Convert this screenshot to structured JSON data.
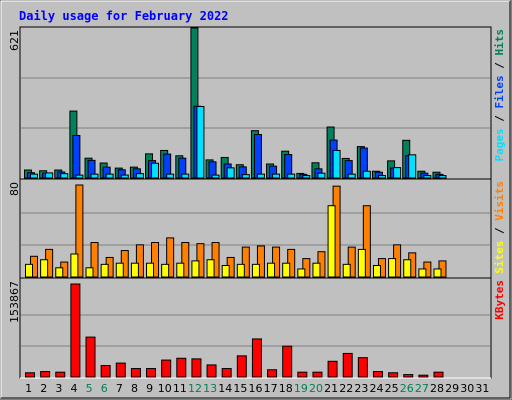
{
  "title": "Daily usage for February 2022",
  "colors": {
    "background": "#c0c0c0",
    "plot": "#c0c0c0",
    "title": "#0000ff",
    "hits": "#00805c",
    "files": "#0040ff",
    "pages": "#00e0ff",
    "visits": "#ff8000",
    "sites": "#ffff00",
    "kbytes": "#ff0000",
    "weekend": "#00805c",
    "weekday": "#000000",
    "grid": "#808080"
  },
  "chart_data": [
    {
      "type": "bar",
      "name": "hits-files-pages",
      "legend": [
        {
          "label": "Hits",
          "color": "#00805c"
        },
        {
          "label": "Files",
          "color": "#0040ff"
        },
        {
          "label": "Pages",
          "color": "#00e0ff"
        }
      ],
      "ymax_label": "621",
      "ylim": [
        0,
        621
      ],
      "categories": [
        "1",
        "2",
        "3",
        "4",
        "5",
        "6",
        "7",
        "8",
        "9",
        "10",
        "11",
        "12",
        "13",
        "14",
        "15",
        "16",
        "17",
        "18",
        "19",
        "20",
        "21",
        "22",
        "23",
        "24",
        "25",
        "26",
        "27",
        "28",
        "29",
        "30",
        "31"
      ],
      "series": [
        {
          "name": "Hits",
          "values": [
            33,
            30,
            33,
            277,
            82,
            62,
            41,
            45,
            100,
            114,
            92,
            621,
            75,
            85,
            55,
            196,
            58,
            111,
            19,
            63,
            211,
            81,
            130,
            28,
            71,
            156,
            28,
            24,
            0,
            0,
            0
          ]
        },
        {
          "name": "Files",
          "values": [
            22,
            20,
            25,
            176,
            73,
            45,
            34,
            38,
            72,
            99,
            82,
            297,
            67,
            58,
            46,
            180,
            49,
            97,
            15,
            38,
            157,
            72,
            124,
            24,
            41,
            92,
            20,
            15,
            0,
            0,
            0
          ]
        },
        {
          "name": "Pages",
          "values": [
            16,
            21,
            18,
            12,
            16,
            16,
            12,
            18,
            61,
            16,
            16,
            296,
            12,
            42,
            14,
            16,
            16,
            16,
            10,
            20,
            114,
            16,
            28,
            10,
            43,
            96,
            10,
            10,
            0,
            0,
            0
          ]
        }
      ]
    },
    {
      "type": "bar",
      "name": "visits-sites",
      "legend": [
        {
          "label": "Visits",
          "color": "#ff8000"
        },
        {
          "label": "Sites",
          "color": "#ffff00"
        }
      ],
      "ymax_label": "80",
      "ylim": [
        0,
        80
      ],
      "categories": [
        "1",
        "2",
        "3",
        "4",
        "5",
        "6",
        "7",
        "8",
        "9",
        "10",
        "11",
        "12",
        "13",
        "14",
        "15",
        "16",
        "17",
        "18",
        "19",
        "20",
        "21",
        "22",
        "23",
        "24",
        "25",
        "26",
        "27",
        "28",
        "29",
        "30",
        "31"
      ],
      "series": [
        {
          "name": "Visits",
          "values": [
            18,
            24,
            13,
            80,
            30,
            17,
            23,
            28,
            30,
            34,
            30,
            29,
            30,
            17,
            26,
            27,
            26,
            24,
            16,
            22,
            79,
            26,
            62,
            16,
            28,
            21,
            13,
            14,
            0,
            0,
            0
          ]
        },
        {
          "name": "Sites",
          "values": [
            11,
            15,
            8,
            20,
            8,
            11,
            12,
            12,
            12,
            11,
            12,
            14,
            15,
            10,
            11,
            11,
            12,
            12,
            7,
            12,
            62,
            11,
            24,
            10,
            16,
            15,
            7,
            7,
            0,
            0,
            0
          ]
        }
      ]
    },
    {
      "type": "bar",
      "name": "kbytes",
      "legend": [
        {
          "label": "KBytes",
          "color": "#ff0000"
        }
      ],
      "ymax_label": "153867",
      "ylim": [
        0,
        153867
      ],
      "categories": [
        "1",
        "2",
        "3",
        "4",
        "5",
        "6",
        "7",
        "8",
        "9",
        "10",
        "11",
        "12",
        "13",
        "14",
        "15",
        "16",
        "17",
        "18",
        "19",
        "20",
        "21",
        "22",
        "23",
        "24",
        "25",
        "26",
        "27",
        "28",
        "29",
        "30",
        "31"
      ],
      "series": [
        {
          "name": "KBytes",
          "values": [
            7000,
            9000,
            8000,
            153867,
            66000,
            19000,
            23000,
            14000,
            14000,
            28000,
            31000,
            30000,
            20000,
            14000,
            35000,
            63000,
            12000,
            51000,
            8000,
            8000,
            26000,
            39000,
            32000,
            9000,
            7000,
            4000,
            3000,
            8000,
            0,
            0,
            0
          ]
        }
      ]
    }
  ]
}
